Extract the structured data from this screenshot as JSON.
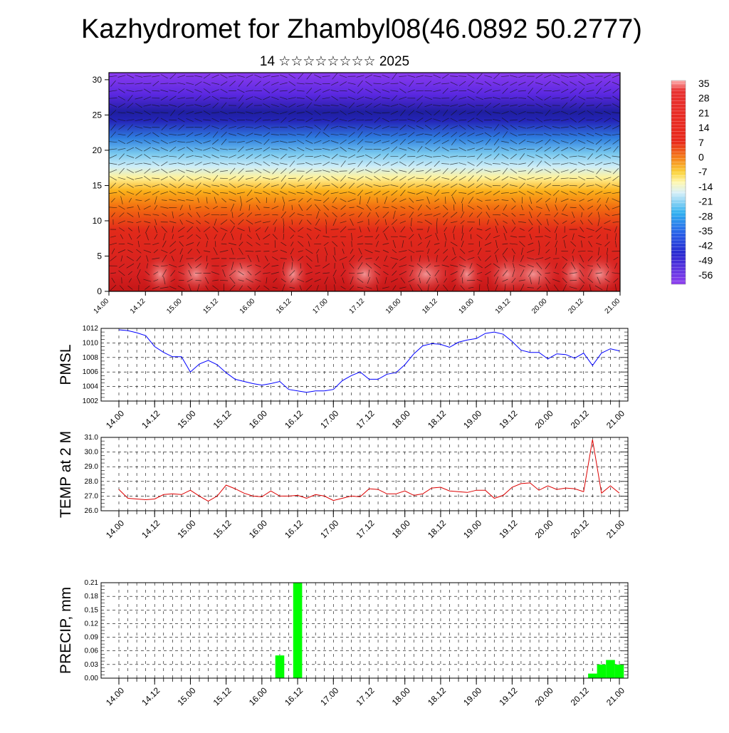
{
  "title": "Kazhydromet for Zhambyl08(46.0892 50.2777)",
  "subtitle": "14 ☆☆☆☆☆☆☆☆ 2025",
  "colors": {
    "pmsl_line": "#0000ff",
    "temp_line": "#dd0000",
    "precip_bar": "#00ff00",
    "grid": "#000000"
  },
  "chart_data": [
    {
      "type": "heatmap",
      "name": "upper",
      "y_ticks": [
        "0",
        "5",
        "10",
        "15",
        "20",
        "25",
        "30"
      ],
      "ylim": [
        0,
        31
      ],
      "x_ticks": [
        "14.00",
        "14.12",
        "15.00",
        "15.12",
        "16.00",
        "16.12",
        "17.00",
        "17.12",
        "18.00",
        "18.12",
        "19.00",
        "19.12",
        "20.00",
        "20.12",
        "21.00"
      ],
      "colorbar_ticks": [
        "35",
        "28",
        "21",
        "14",
        "7",
        "0",
        "-7",
        "-14",
        "-21",
        "-28",
        "-35",
        "-42",
        "-49",
        "-56"
      ],
      "overlay": "wind vectors"
    },
    {
      "type": "line",
      "name": "pmsl",
      "ylabel": "PMSL",
      "ylim": [
        1002,
        1012
      ],
      "y_ticks": [
        "1012",
        "1010",
        "1008",
        "1006",
        "1004",
        "1002"
      ],
      "x_ticks": [
        "14.00",
        "14.12",
        "15.00",
        "15.12",
        "16.00",
        "16.12",
        "17.00",
        "17.12",
        "18.00",
        "18.12",
        "19.00",
        "19.12",
        "20.00",
        "20.12",
        "21.00"
      ],
      "x_step_hours": 3,
      "values": [
        1011.8,
        1011.7,
        1011.4,
        1011.0,
        1009.5,
        1008.7,
        1008.1,
        1008.1,
        1006.0,
        1007.1,
        1007.6,
        1007.0,
        1005.9,
        1005.0,
        1004.7,
        1004.4,
        1004.2,
        1004.4,
        1004.7,
        1003.6,
        1003.4,
        1003.2,
        1003.4,
        1003.4,
        1003.6,
        1004.8,
        1005.5,
        1006.0,
        1005.0,
        1005.0,
        1005.7,
        1005.9,
        1007.0,
        1008.5,
        1009.6,
        1009.9,
        1009.8,
        1009.4,
        1010.1,
        1010.4,
        1010.6,
        1011.3,
        1011.5,
        1011.2,
        1010.2,
        1009.0,
        1008.7,
        1008.7,
        1007.8,
        1008.5,
        1008.4,
        1007.9,
        1008.6,
        1006.9,
        1008.6,
        1009.2,
        1008.9
      ]
    },
    {
      "type": "line",
      "name": "temp",
      "ylabel": "TEMP at 2 M",
      "ylim": [
        26,
        31
      ],
      "y_ticks": [
        "31.0",
        "30.0",
        "29.0",
        "28.0",
        "27.0",
        "26.0"
      ],
      "x_ticks": [
        "14.00",
        "14.12",
        "15.00",
        "15.12",
        "16.00",
        "16.12",
        "17.00",
        "17.12",
        "18.00",
        "18.12",
        "19.00",
        "19.12",
        "20.00",
        "20.12",
        "21.00"
      ],
      "x_step_hours": 3,
      "values": [
        27.45,
        26.85,
        26.8,
        26.75,
        26.8,
        27.1,
        27.15,
        27.1,
        27.4,
        27.0,
        26.65,
        27.0,
        27.75,
        27.5,
        27.2,
        27.0,
        26.95,
        27.35,
        27.0,
        27.0,
        27.05,
        26.85,
        27.1,
        27.0,
        26.7,
        26.85,
        27.0,
        26.95,
        27.5,
        27.45,
        27.15,
        27.15,
        27.35,
        27.05,
        27.15,
        27.55,
        27.6,
        27.35,
        27.3,
        27.25,
        27.4,
        27.4,
        26.85,
        27.05,
        27.6,
        27.85,
        27.9,
        27.4,
        27.7,
        27.45,
        27.55,
        27.5,
        27.3,
        30.85,
        27.2,
        27.7,
        27.2
      ]
    },
    {
      "type": "bar",
      "name": "precip",
      "ylabel": "PRECIP, mm",
      "ylim": [
        0,
        0.21
      ],
      "y_ticks": [
        "0.21",
        "0.18",
        "0.15",
        "0.12",
        "0.09",
        "0.06",
        "0.03",
        "0.00"
      ],
      "x_ticks": [
        "14.00",
        "14.12",
        "15.00",
        "15.12",
        "16.00",
        "16.12",
        "17.00",
        "17.12",
        "18.00",
        "18.12",
        "19.00",
        "19.12",
        "20.00",
        "20.12",
        "21.00"
      ],
      "x_step_hours": 3,
      "values": [
        0,
        0,
        0,
        0,
        0,
        0,
        0,
        0,
        0,
        0,
        0,
        0,
        0,
        0,
        0,
        0,
        0,
        0,
        0.05,
        0,
        0.21,
        0,
        0,
        0,
        0,
        0,
        0,
        0,
        0,
        0,
        0,
        0,
        0,
        0,
        0,
        0,
        0,
        0,
        0,
        0,
        0,
        0,
        0,
        0,
        0,
        0,
        0,
        0,
        0,
        0,
        0,
        0,
        0,
        0.01,
        0.03,
        0.04,
        0.03
      ]
    }
  ]
}
